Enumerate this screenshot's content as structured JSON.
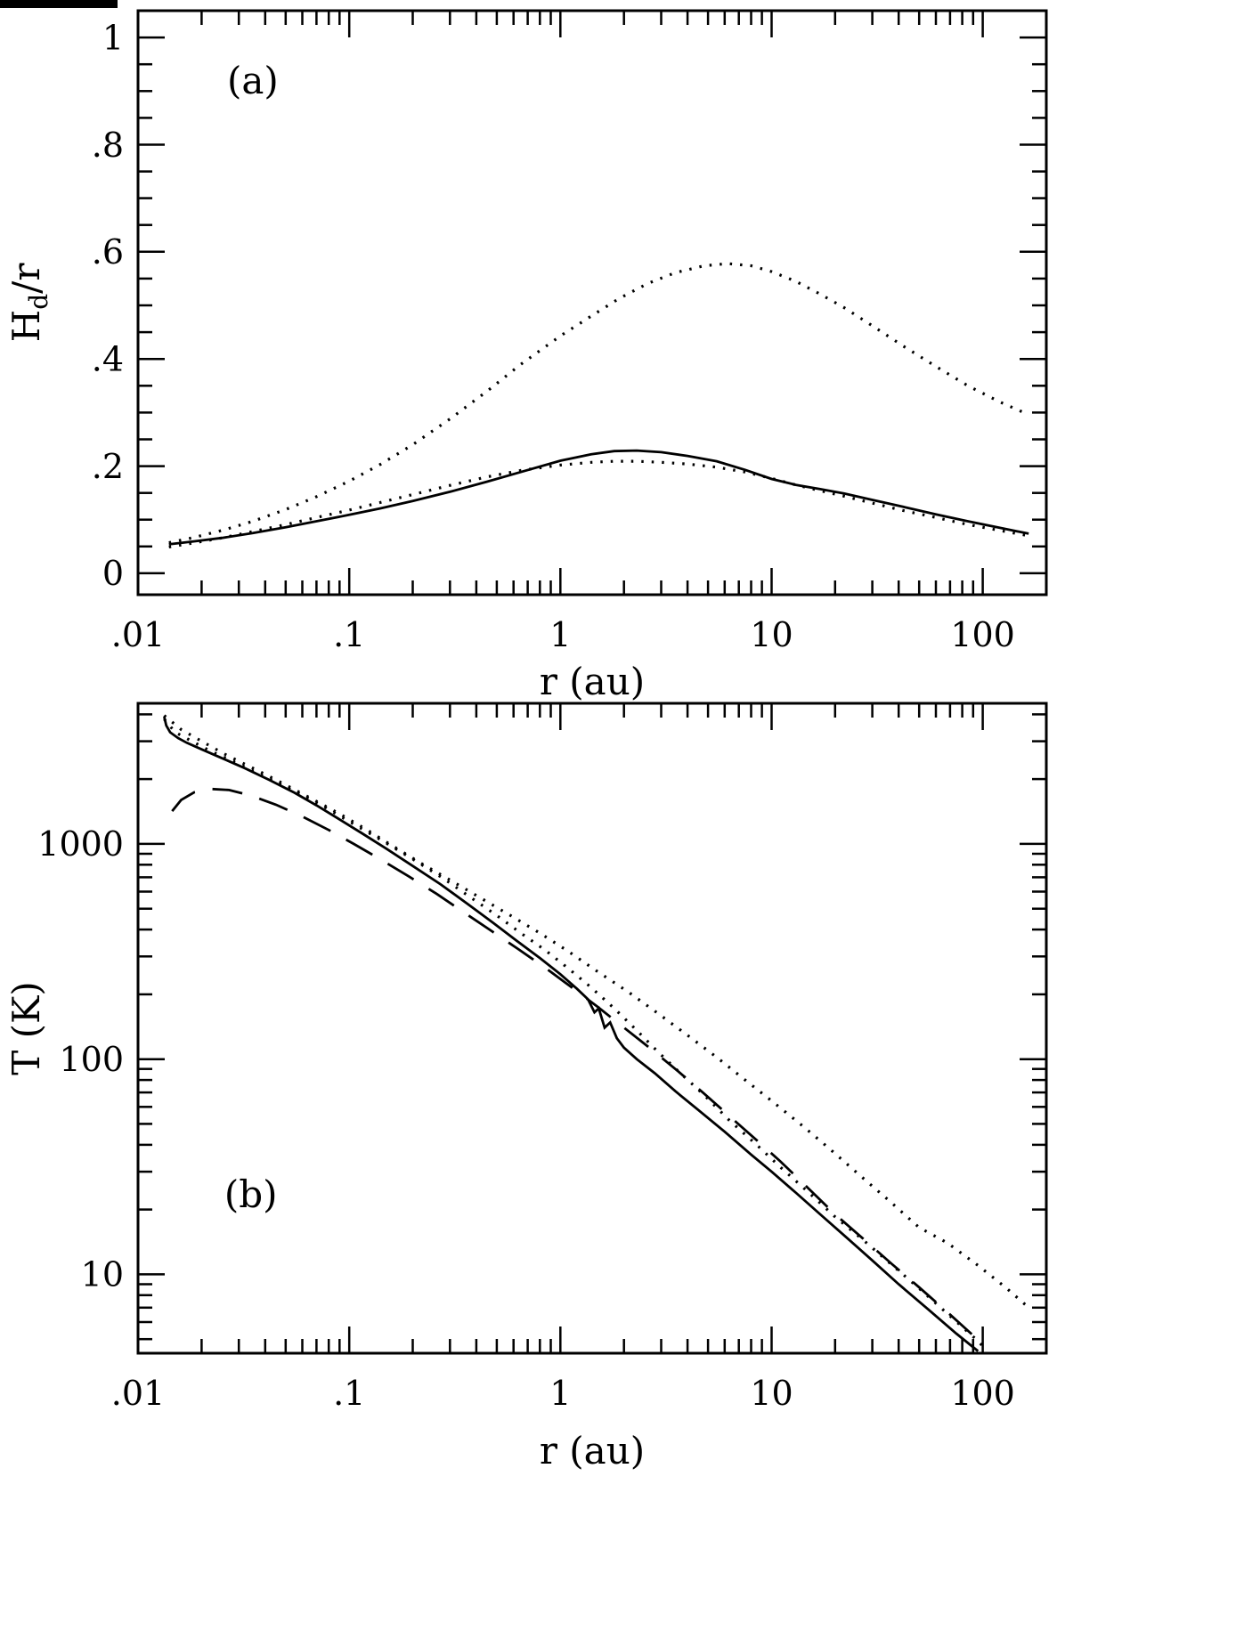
{
  "colors": {
    "ink": "#000000",
    "paper": "#ffffff"
  },
  "chart_data": [
    {
      "id": "a",
      "type": "line",
      "annotation": "(a)",
      "xlabel": "r (au)",
      "ylabel": "Hd/r",
      "ylabel_rich": [
        {
          "t": "H"
        },
        {
          "t": "d",
          "sub": true
        },
        {
          "t": "/r"
        }
      ],
      "x_axis": {
        "scale": "log",
        "min": 0.01,
        "max": 200,
        "major_ticks": [
          0.01,
          0.1,
          1,
          10,
          100
        ],
        "tick_labels": [
          ".01",
          ".1",
          "1",
          "10",
          "100"
        ]
      },
      "y_axis": {
        "scale": "linear",
        "min": -0.04,
        "max": 1.05,
        "major_ticks": [
          0,
          0.2,
          0.4,
          0.6,
          0.8,
          1
        ],
        "tick_labels": [
          "0",
          ".2",
          ".4",
          ".6",
          ".8",
          "1"
        ],
        "minor_step": 0.05
      },
      "legend": "none",
      "grid": false,
      "series": [
        {
          "name": "dotted_outer",
          "style": "dotted",
          "points": [
            [
              0.014,
              0.057
            ],
            [
              0.018,
              0.066
            ],
            [
              0.025,
              0.08
            ],
            [
              0.035,
              0.097
            ],
            [
              0.05,
              0.119
            ],
            [
              0.07,
              0.143
            ],
            [
              0.1,
              0.172
            ],
            [
              0.14,
              0.203
            ],
            [
              0.2,
              0.24
            ],
            [
              0.3,
              0.288
            ],
            [
              0.45,
              0.34
            ],
            [
              0.65,
              0.39
            ],
            [
              1.0,
              0.443
            ],
            [
              1.4,
              0.48
            ],
            [
              1.9,
              0.513
            ],
            [
              2.6,
              0.541
            ],
            [
              3.5,
              0.561
            ],
            [
              4.8,
              0.574
            ],
            [
              6.2,
              0.578
            ],
            [
              8,
              0.574
            ],
            [
              10,
              0.563
            ],
            [
              13,
              0.545
            ],
            [
              17,
              0.521
            ],
            [
              22,
              0.496
            ],
            [
              30,
              0.462
            ],
            [
              42,
              0.424
            ],
            [
              60,
              0.386
            ],
            [
              85,
              0.35
            ],
            [
              120,
              0.32
            ],
            [
              165,
              0.296
            ]
          ]
        },
        {
          "name": "solid",
          "style": "solid",
          "points": [
            [
              0.014,
              0.054
            ],
            [
              0.018,
              0.059
            ],
            [
              0.025,
              0.066
            ],
            [
              0.035,
              0.075
            ],
            [
              0.05,
              0.086
            ],
            [
              0.07,
              0.097
            ],
            [
              0.1,
              0.109
            ],
            [
              0.14,
              0.121
            ],
            [
              0.2,
              0.135
            ],
            [
              0.3,
              0.152
            ],
            [
              0.45,
              0.171
            ],
            [
              0.65,
              0.189
            ],
            [
              1.0,
              0.21
            ],
            [
              1.4,
              0.222
            ],
            [
              1.8,
              0.228
            ],
            [
              2.3,
              0.229
            ],
            [
              3.0,
              0.226
            ],
            [
              4.0,
              0.219
            ],
            [
              5.5,
              0.209
            ],
            [
              7.5,
              0.193
            ],
            [
              10,
              0.176
            ],
            [
              13,
              0.165
            ],
            [
              17,
              0.157
            ],
            [
              22,
              0.149
            ],
            [
              30,
              0.137
            ],
            [
              42,
              0.124
            ],
            [
              60,
              0.11
            ],
            [
              85,
              0.097
            ],
            [
              120,
              0.085
            ],
            [
              165,
              0.074
            ]
          ]
        },
        {
          "name": "dotted_inner",
          "style": "dotted",
          "points": [
            [
              0.014,
              0.049
            ],
            [
              0.018,
              0.056
            ],
            [
              0.025,
              0.066
            ],
            [
              0.035,
              0.078
            ],
            [
              0.05,
              0.091
            ],
            [
              0.07,
              0.104
            ],
            [
              0.1,
              0.118
            ],
            [
              0.14,
              0.132
            ],
            [
              0.2,
              0.147
            ],
            [
              0.3,
              0.164
            ],
            [
              0.45,
              0.18
            ],
            [
              0.65,
              0.192
            ],
            [
              1.0,
              0.202
            ],
            [
              1.4,
              0.207
            ],
            [
              1.8,
              0.209
            ],
            [
              2.3,
              0.209
            ],
            [
              3.0,
              0.207
            ],
            [
              4.0,
              0.204
            ],
            [
              5.5,
              0.198
            ],
            [
              7.5,
              0.189
            ],
            [
              10,
              0.177
            ],
            [
              13,
              0.165
            ],
            [
              17,
              0.154
            ],
            [
              22,
              0.144
            ],
            [
              30,
              0.131
            ],
            [
              42,
              0.117
            ],
            [
              60,
              0.104
            ],
            [
              85,
              0.091
            ],
            [
              120,
              0.08
            ],
            [
              165,
              0.07
            ]
          ]
        }
      ]
    },
    {
      "id": "b",
      "type": "line",
      "annotation": "(b)",
      "xlabel": "r (au)",
      "ylabel": "T (K)",
      "ylabel_rich": [
        {
          "t": "T (K)"
        }
      ],
      "x_axis": {
        "scale": "log",
        "min": 0.01,
        "max": 200,
        "major_ticks": [
          0.01,
          0.1,
          1,
          10,
          100
        ],
        "tick_labels": [
          ".01",
          ".1",
          "1",
          "10",
          "100"
        ]
      },
      "y_axis": {
        "scale": "log",
        "min": 4.3,
        "max": 4500,
        "major_ticks": [
          10,
          100,
          1000
        ],
        "tick_labels": [
          "10",
          "100",
          "1000"
        ]
      },
      "legend": "none",
      "grid": false,
      "series": [
        {
          "name": "dotted_upper",
          "style": "dotted",
          "points": [
            [
              0.0133,
              3950
            ],
            [
              0.016,
              3400
            ],
            [
              0.02,
              3000
            ],
            [
              0.026,
              2600
            ],
            [
              0.035,
              2250
            ],
            [
              0.048,
              1920
            ],
            [
              0.065,
              1640
            ],
            [
              0.09,
              1380
            ],
            [
              0.12,
              1170
            ],
            [
              0.16,
              980
            ],
            [
              0.22,
              810
            ],
            [
              0.3,
              680
            ],
            [
              0.42,
              560
            ],
            [
              0.58,
              465
            ],
            [
              0.8,
              385
            ],
            [
              1.1,
              315
            ],
            [
              1.5,
              255
            ],
            [
              2.1,
              205
            ],
            [
              2.9,
              163
            ],
            [
              4,
              129
            ],
            [
              5.5,
              102
            ],
            [
              7.5,
              80
            ],
            [
              10,
              64
            ],
            [
              14,
              49
            ],
            [
              19,
              38
            ],
            [
              26,
              29
            ],
            [
              36,
              22
            ],
            [
              50,
              16.5
            ],
            [
              68,
              14
            ],
            [
              95,
              11
            ],
            [
              130,
              8.6
            ],
            [
              165,
              7.0
            ]
          ]
        },
        {
          "name": "solid",
          "style": "solid",
          "points": [
            [
              0.0133,
              3900
            ],
            [
              0.0136,
              3550
            ],
            [
              0.0142,
              3300
            ],
            [
              0.0155,
              3100
            ],
            [
              0.017,
              2950
            ],
            [
              0.02,
              2750
            ],
            [
              0.025,
              2500
            ],
            [
              0.032,
              2250
            ],
            [
              0.042,
              1980
            ],
            [
              0.055,
              1730
            ],
            [
              0.07,
              1510
            ],
            [
              0.09,
              1300
            ],
            [
              0.115,
              1120
            ],
            [
              0.15,
              950
            ],
            [
              0.2,
              790
            ],
            [
              0.27,
              650
            ],
            [
              0.36,
              530
            ],
            [
              0.48,
              430
            ],
            [
              0.62,
              355
            ],
            [
              0.8,
              295
            ],
            [
              1.0,
              248
            ],
            [
              1.2,
              212
            ],
            [
              1.35,
              190
            ],
            [
              1.45,
              165
            ],
            [
              1.52,
              172
            ],
            [
              1.62,
              140
            ],
            [
              1.72,
              148
            ],
            [
              1.85,
              125
            ],
            [
              2.0,
              113
            ],
            [
              2.3,
              100
            ],
            [
              2.8,
              86
            ],
            [
              3.5,
              71
            ],
            [
              4.5,
              58
            ],
            [
              6,
              46
            ],
            [
              8,
              36
            ],
            [
              10,
              30
            ],
            [
              13,
              24
            ],
            [
              17,
              19
            ],
            [
              22,
              15.2
            ],
            [
              30,
              11.6
            ],
            [
              40,
              9.0
            ],
            [
              55,
              6.9
            ],
            [
              75,
              5.3
            ],
            [
              95,
              4.4
            ]
          ]
        },
        {
          "name": "dotted_lower",
          "style": "dotted",
          "points": [
            [
              0.0133,
              3800
            ],
            [
              0.015,
              3300
            ],
            [
              0.018,
              3000
            ],
            [
              0.022,
              2700
            ],
            [
              0.03,
              2350
            ],
            [
              0.04,
              2050
            ],
            [
              0.055,
              1760
            ],
            [
              0.075,
              1500
            ],
            [
              0.1,
              1270
            ],
            [
              0.14,
              1050
            ],
            [
              0.2,
              850
            ],
            [
              0.28,
              690
            ],
            [
              0.38,
              560
            ],
            [
              0.5,
              465
            ],
            [
              0.65,
              385
            ],
            [
              0.85,
              320
            ],
            [
              1.1,
              262
            ],
            [
              1.4,
              215
            ],
            [
              1.8,
              172
            ],
            [
              2.3,
              136
            ],
            [
              2.9,
              108
            ],
            [
              3.7,
              86
            ],
            [
              4.8,
              68
            ],
            [
              6.3,
              52
            ],
            [
              8.5,
              40
            ],
            [
              11,
              31.5
            ],
            [
              15,
              24
            ],
            [
              20,
              18.5
            ],
            [
              27,
              14.5
            ],
            [
              37,
              11.1
            ],
            [
              50,
              8.6
            ],
            [
              70,
              6.4
            ],
            [
              95,
              4.9
            ],
            [
              105,
              4.4
            ]
          ]
        },
        {
          "name": "dashed",
          "style": "dashed",
          "points": [
            [
              0.0145,
              1420
            ],
            [
              0.016,
              1600
            ],
            [
              0.0185,
              1740
            ],
            [
              0.022,
              1800
            ],
            [
              0.027,
              1780
            ],
            [
              0.034,
              1680
            ],
            [
              0.045,
              1520
            ],
            [
              0.06,
              1340
            ],
            [
              0.08,
              1160
            ],
            [
              0.105,
              1000
            ],
            [
              0.14,
              850
            ],
            [
              0.19,
              710
            ],
            [
              0.26,
              585
            ],
            [
              0.35,
              480
            ],
            [
              0.47,
              395
            ],
            [
              0.63,
              325
            ],
            [
              0.85,
              265
            ],
            [
              1.1,
              220
            ],
            [
              1.5,
              175
            ],
            [
              2.0,
              140
            ],
            [
              2.7,
              111
            ],
            [
              3.6,
              88
            ],
            [
              4.8,
              69
            ],
            [
              6.5,
              53
            ],
            [
              8.5,
              42
            ],
            [
              11,
              33.5
            ],
            [
              15,
              25
            ],
            [
              20,
              19
            ],
            [
              27,
              14.7
            ],
            [
              37,
              11.2
            ],
            [
              50,
              8.7
            ],
            [
              70,
              6.5
            ],
            [
              90,
              5.2
            ]
          ]
        }
      ]
    }
  ]
}
